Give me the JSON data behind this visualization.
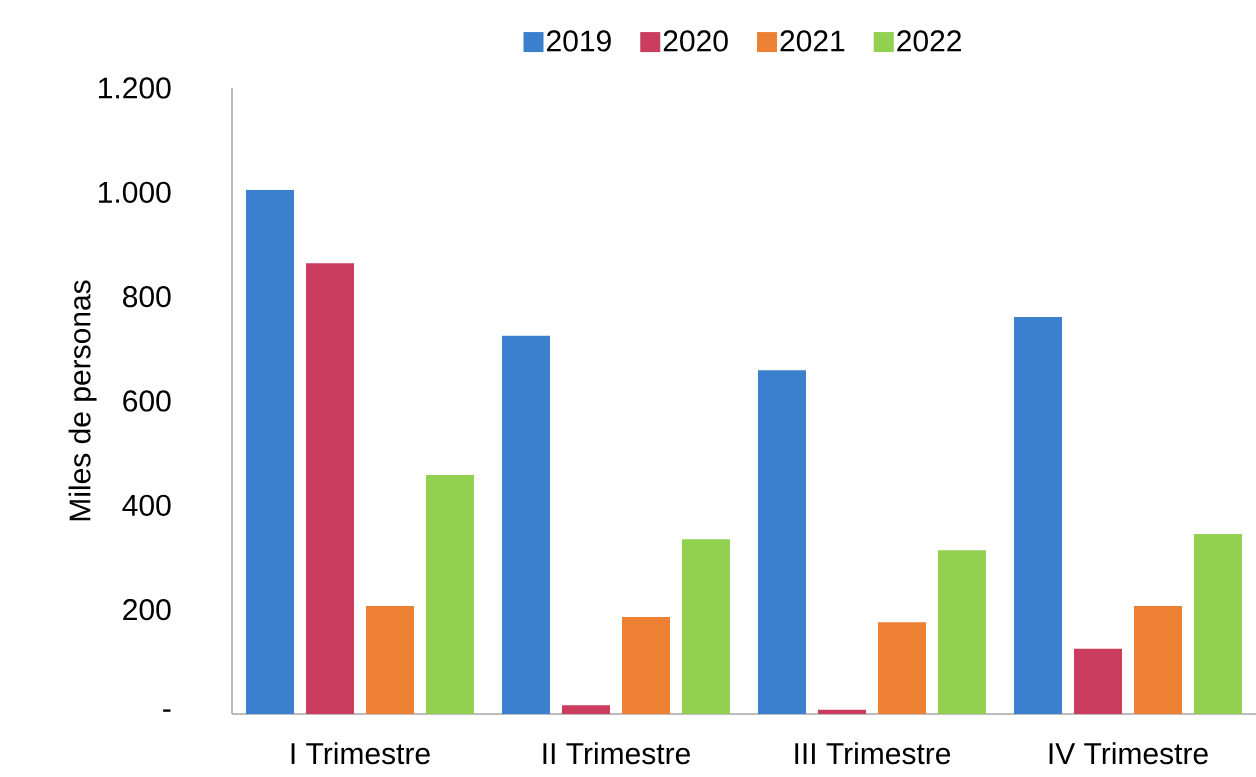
{
  "chart_data": {
    "type": "bar",
    "ylabel": "Miles de personas",
    "categories": [
      "I Trimestre",
      "II Trimestre",
      "III Trimestre",
      "IV Trimestre"
    ],
    "series": [
      {
        "name": "2019",
        "color": "#3a80cc",
        "values": [
          1005,
          725,
          659,
          761
        ]
      },
      {
        "name": "2020",
        "color": "#cb3d5e",
        "values": [
          864,
          17,
          8,
          125
        ]
      },
      {
        "name": "2021",
        "color": "#ee8033",
        "values": [
          207,
          186,
          176,
          207
        ]
      },
      {
        "name": "2022",
        "color": "#92d050",
        "values": [
          458,
          335,
          314,
          345
        ]
      }
    ],
    "ylim": [
      0,
      1200
    ],
    "yticks": [
      {
        "value": 0,
        "label": "-"
      },
      {
        "value": 200,
        "label": "200"
      },
      {
        "value": 400,
        "label": "400"
      },
      {
        "value": 600,
        "label": "600"
      },
      {
        "value": 800,
        "label": "800"
      },
      {
        "value": 1000,
        "label": "1.000"
      },
      {
        "value": 1200,
        "label": "1.200"
      }
    ],
    "grid": false,
    "legend": "top"
  }
}
